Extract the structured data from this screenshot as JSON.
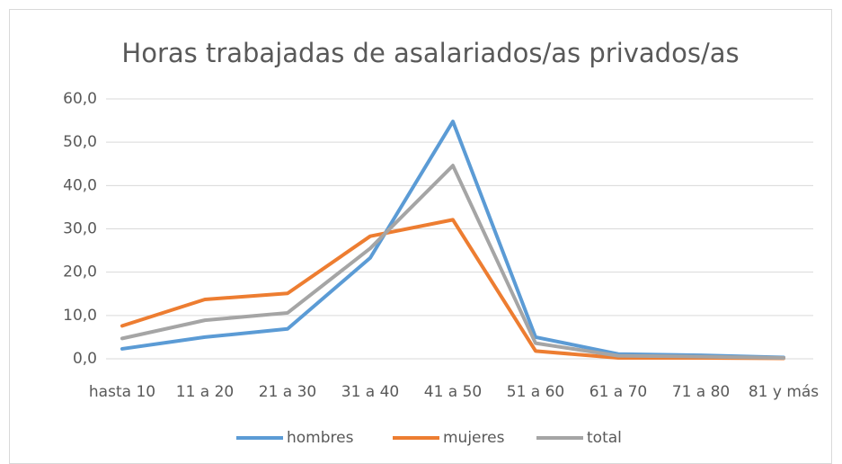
{
  "chart_data": {
    "type": "line",
    "title": "Horas trabajadas de asalariados/as privados/as",
    "categories": [
      "hasta 10",
      "11 a 20",
      "21 a 30",
      "31 a 40",
      "41 a 50",
      "51 a 60",
      "61 a 70",
      "71  a 80",
      "81 y más"
    ],
    "series": [
      {
        "name": "hombres",
        "color": "#5b9bd5",
        "values": [
          2.3,
          5.0,
          6.9,
          23.3,
          54.8,
          5.0,
          1.1,
          0.8,
          0.3
        ]
      },
      {
        "name": "mujeres",
        "color": "#ed7d31",
        "values": [
          7.6,
          13.7,
          15.1,
          28.3,
          32.1,
          1.8,
          0.2,
          0.2,
          0.1
        ]
      },
      {
        "name": "total",
        "color": "#a5a5a5",
        "values": [
          4.7,
          8.9,
          10.6,
          25.5,
          44.6,
          3.6,
          0.7,
          0.5,
          0.2
        ]
      }
    ],
    "ylim": [
      0,
      60
    ],
    "yticks": [
      {
        "value": 0,
        "label": "0,0"
      },
      {
        "value": 10,
        "label": "10,0"
      },
      {
        "value": 20,
        "label": "20,0"
      },
      {
        "value": 30,
        "label": "30,0"
      },
      {
        "value": 40,
        "label": "40,0"
      },
      {
        "value": 50,
        "label": "50,0"
      },
      {
        "value": 60,
        "label": "60,0"
      }
    ],
    "grid": true,
    "legend": "bottom"
  }
}
